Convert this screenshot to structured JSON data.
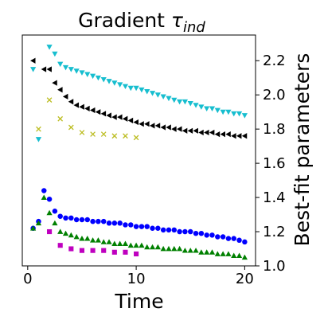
{
  "chart_data": {
    "type": "scatter",
    "title": {
      "main": "Gradient ",
      "symbol": "τ",
      "subscript": "ind"
    },
    "xlabel": "Time",
    "ylabel": "Best-fit parameters",
    "y_axis_side": "right",
    "xlim": [
      -0.5,
      21
    ],
    "ylim": [
      1.0,
      2.35
    ],
    "xticks": [
      0,
      10,
      20
    ],
    "xtick_labels": [
      "0",
      "10",
      "20"
    ],
    "yticks": [
      1.0,
      1.2,
      1.4,
      1.6,
      1.8,
      2.0,
      2.2
    ],
    "ytick_labels": [
      "1.0",
      "1.2",
      "1.4",
      "1.6",
      "1.8",
      "2.0",
      "2.2"
    ],
    "grid": false,
    "series": [
      {
        "marker": "triangle-down",
        "color": "#17becf",
        "x": [
          0.5,
          1,
          2,
          2.5,
          3,
          3.5,
          4,
          4.5,
          5,
          5.5,
          6,
          6.5,
          7,
          7.5,
          8,
          8.5,
          9,
          9.5,
          10,
          10.5,
          11,
          11.5,
          12,
          12.5,
          13,
          13.5,
          14,
          14.5,
          15,
          15.5,
          16,
          16.5,
          17,
          17.5,
          18,
          18.5,
          19,
          19.5,
          20
        ],
        "y": [
          2.15,
          1.74,
          2.28,
          2.24,
          2.18,
          2.16,
          2.15,
          2.14,
          2.13,
          2.12,
          2.11,
          2.1,
          2.09,
          2.08,
          2.07,
          2.06,
          2.05,
          2.04,
          2.04,
          2.03,
          2.02,
          2.01,
          2.0,
          1.99,
          1.98,
          1.97,
          1.96,
          1.96,
          1.95,
          1.94,
          1.93,
          1.92,
          1.92,
          1.91,
          1.9,
          1.9,
          1.89,
          1.89,
          1.88
        ]
      },
      {
        "marker": "triangle-left",
        "color": "#000000",
        "x": [
          0.5,
          1.5,
          2,
          2.5,
          3,
          3.5,
          4,
          4.5,
          5,
          5.5,
          6,
          6.5,
          7,
          7.5,
          8,
          8.5,
          9,
          9.5,
          10,
          10.5,
          11,
          11.5,
          12,
          12.5,
          13,
          13.5,
          14,
          14.5,
          15,
          15.5,
          16,
          16.5,
          17,
          17.5,
          18,
          18.5,
          19,
          19.5,
          20
        ],
        "y": [
          2.2,
          2.15,
          2.15,
          2.07,
          2.03,
          1.99,
          1.96,
          1.94,
          1.93,
          1.92,
          1.91,
          1.9,
          1.89,
          1.88,
          1.87,
          1.87,
          1.86,
          1.85,
          1.84,
          1.83,
          1.83,
          1.82,
          1.82,
          1.81,
          1.81,
          1.8,
          1.8,
          1.79,
          1.79,
          1.79,
          1.78,
          1.78,
          1.78,
          1.77,
          1.77,
          1.77,
          1.76,
          1.76,
          1.76
        ]
      },
      {
        "marker": "x",
        "color": "#bcbd22",
        "x": [
          1,
          2,
          3,
          4,
          5,
          6,
          7,
          8,
          9,
          10
        ],
        "y": [
          1.8,
          1.97,
          1.86,
          1.81,
          1.78,
          1.77,
          1.77,
          1.76,
          1.76,
          1.75
        ]
      },
      {
        "marker": "circle",
        "color": "#0000ff",
        "x": [
          0.5,
          1,
          1.5,
          2,
          2.5,
          3,
          3.5,
          4,
          4.5,
          5,
          5.5,
          6,
          6.5,
          7,
          7.5,
          8,
          8.5,
          9,
          9.5,
          10,
          10.5,
          11,
          11.5,
          12,
          12.5,
          13,
          13.5,
          14,
          14.5,
          15,
          15.5,
          16,
          16.5,
          17,
          17.5,
          18,
          18.5,
          19,
          19.5,
          20
        ],
        "y": [
          1.22,
          1.26,
          1.44,
          1.39,
          1.32,
          1.29,
          1.28,
          1.28,
          1.27,
          1.27,
          1.27,
          1.26,
          1.26,
          1.26,
          1.25,
          1.25,
          1.25,
          1.24,
          1.24,
          1.23,
          1.23,
          1.23,
          1.22,
          1.22,
          1.21,
          1.21,
          1.21,
          1.2,
          1.2,
          1.2,
          1.19,
          1.19,
          1.18,
          1.18,
          1.17,
          1.17,
          1.16,
          1.16,
          1.15,
          1.14
        ]
      },
      {
        "marker": "triangle-up",
        "color": "#008000",
        "x": [
          0.5,
          1,
          1.5,
          2,
          2.5,
          3,
          3.5,
          4,
          4.5,
          5,
          5.5,
          6,
          6.5,
          7,
          7.5,
          8,
          8.5,
          9,
          9.5,
          10,
          10.5,
          11,
          11.5,
          12,
          12.5,
          13,
          13.5,
          14,
          14.5,
          15,
          15.5,
          16,
          16.5,
          17,
          17.5,
          18,
          18.5,
          19,
          19.5,
          20
        ],
        "y": [
          1.22,
          1.25,
          1.4,
          1.31,
          1.25,
          1.2,
          1.19,
          1.18,
          1.17,
          1.16,
          1.16,
          1.15,
          1.15,
          1.14,
          1.14,
          1.13,
          1.13,
          1.13,
          1.12,
          1.12,
          1.12,
          1.11,
          1.11,
          1.11,
          1.1,
          1.1,
          1.1,
          1.1,
          1.09,
          1.09,
          1.09,
          1.08,
          1.08,
          1.08,
          1.07,
          1.07,
          1.07,
          1.06,
          1.06,
          1.05
        ]
      },
      {
        "marker": "square",
        "color": "#bf00bf",
        "x": [
          2,
          3,
          4,
          5,
          6,
          7,
          8,
          9,
          10
        ],
        "y": [
          1.2,
          1.12,
          1.1,
          1.09,
          1.09,
          1.09,
          1.08,
          1.08,
          1.07
        ]
      }
    ]
  }
}
